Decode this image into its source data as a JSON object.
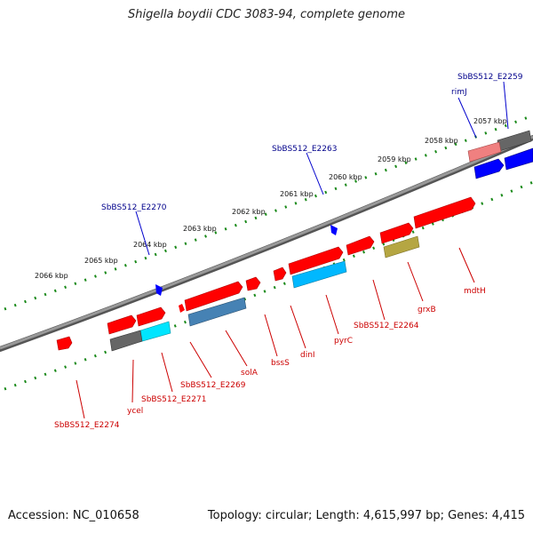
{
  "title": "Shigella boydii CDC 3083-94, complete genome",
  "footer": {
    "accession": "Accession: NC_010658",
    "summary": "Topology: circular; Length: 4,615,997 bp; Genes: 4,415"
  },
  "colors": {
    "backbone": "#8a8a8a",
    "tick": "#1a8a1a",
    "gene_red": "#ff0000",
    "gene_grey": "#666666",
    "gene_pink": "#f08080",
    "gene_blue": "#0000ff",
    "gene_cyan": "#00e5ff",
    "gene_deepsky": "#00b8ff",
    "gene_steel": "#4682b4",
    "gene_olive": "#b5a642",
    "label_red": "#cc0000",
    "label_blue": "#00008b"
  },
  "scale_labels": [
    "2057 kbp",
    "2058 kbp",
    "2059 kbp",
    "2060 kbp",
    "2061 kbp",
    "2062 kbp",
    "2063 kbp",
    "2064 kbp",
    "2065 kbp",
    "2066 kbp"
  ],
  "gene_labels_top": [
    "rimJ",
    "SbBS512_E2259",
    "SbBS512_E2263",
    "SbBS512_E2270"
  ],
  "gene_labels_bottom": [
    "mdtH",
    "grxB",
    "SbBS512_E2264",
    "pyrC",
    "dinI",
    "bssS",
    "solA",
    "SbBS512_E2269",
    "SbBS512_E2271",
    "ycel",
    "SbBS512_E2274"
  ]
}
